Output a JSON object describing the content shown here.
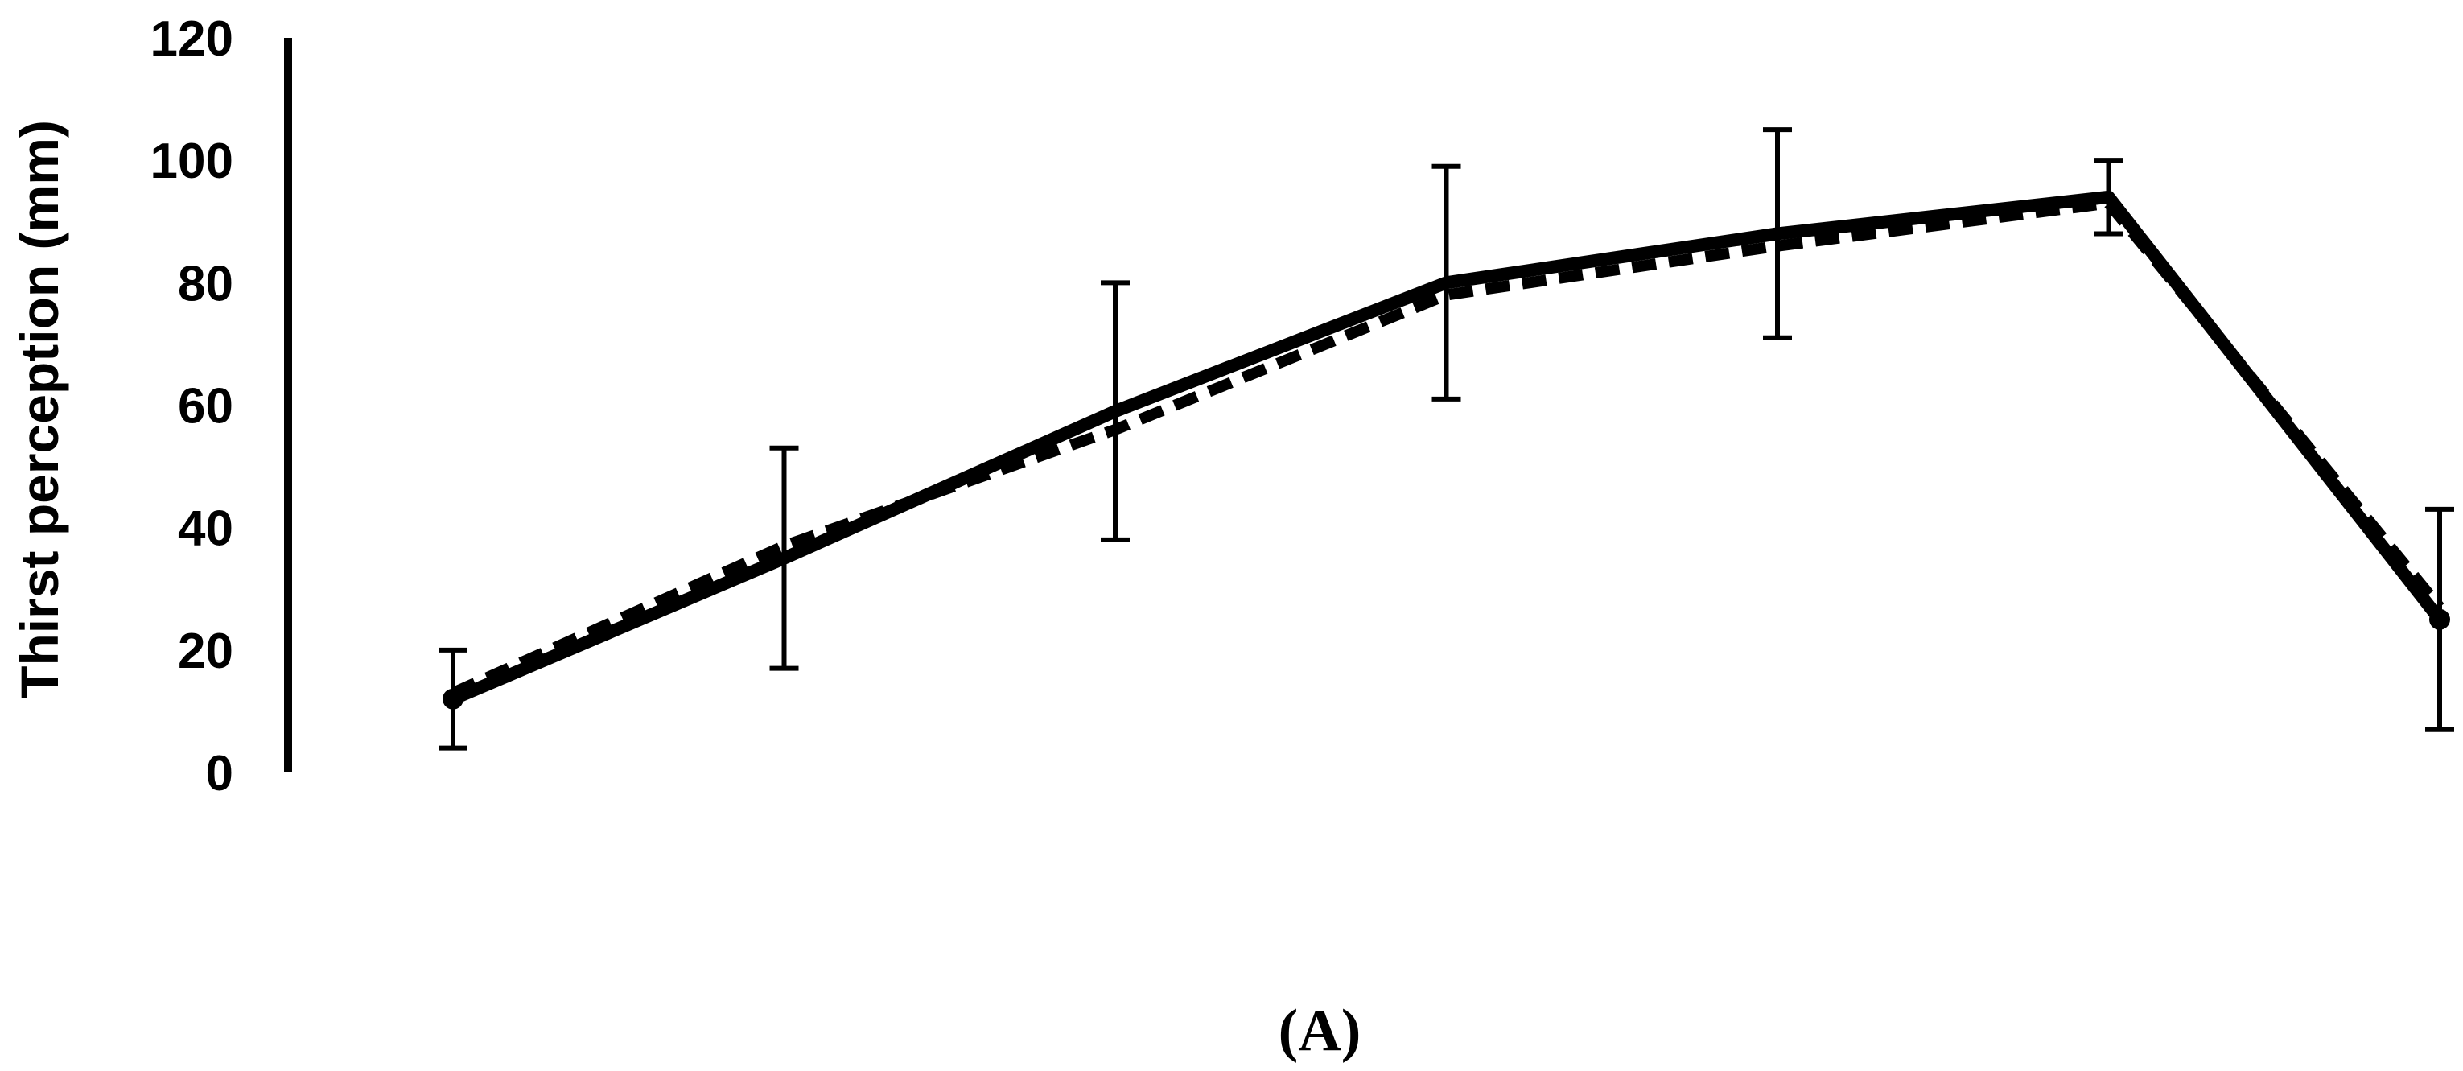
{
  "chart_data": {
    "type": "line",
    "title": "",
    "xlabel": "",
    "ylabel": "Thirst perception (mm)",
    "panel_label": "(A)",
    "ylim": [
      0,
      120
    ],
    "yticks": [
      0,
      20,
      40,
      60,
      80,
      100,
      120
    ],
    "x": [
      1,
      2,
      3,
      4,
      5,
      6,
      7
    ],
    "xtick_labels_shown": false,
    "grid": false,
    "legend": "none",
    "series": [
      {
        "style": "solid",
        "values": [
          12,
          35,
          59,
          80,
          88,
          94,
          25
        ],
        "error": [
          8,
          18,
          21,
          19,
          17,
          6,
          18
        ],
        "color": "#000000"
      },
      {
        "style": "dashed",
        "values": [
          13,
          37,
          56,
          78,
          86,
          93,
          27
        ],
        "color": "#000000"
      }
    ]
  }
}
